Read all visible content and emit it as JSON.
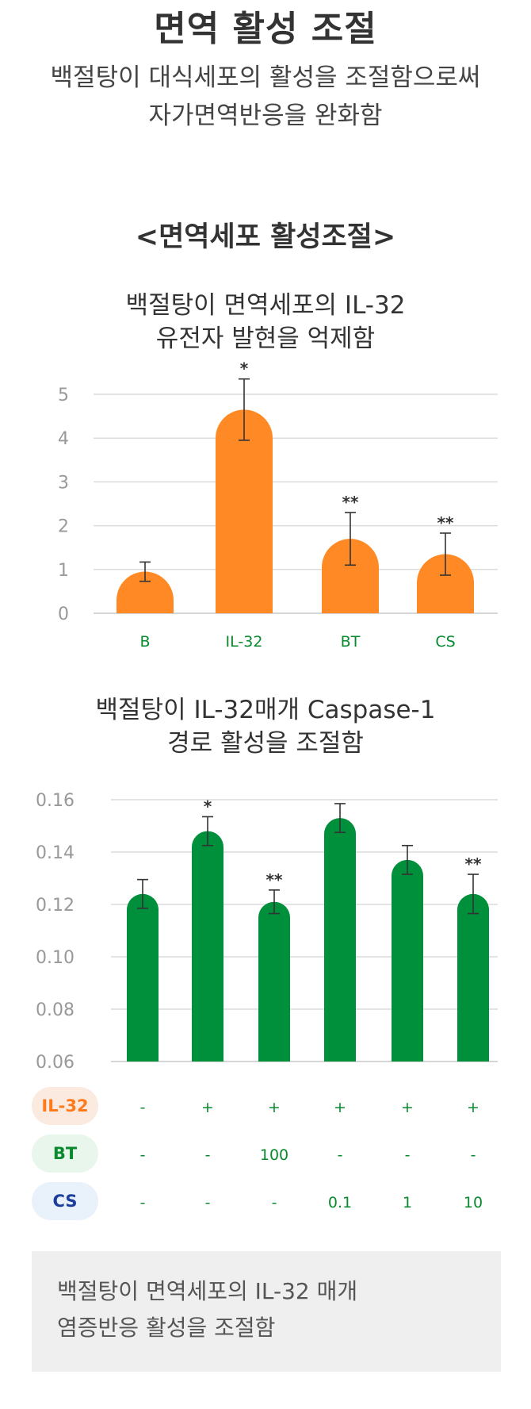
{
  "header": {
    "title": "면역 활성 조절",
    "subtitle_line1": "백절탕이 대식세포의 활성을 조절함으로써",
    "subtitle_line2": "자가면역반응을 완화함"
  },
  "section": {
    "title": "<면역세포 활성조절>"
  },
  "colors": {
    "orange": "#FF8A25",
    "green": "#008F3A",
    "label_green": "#0A8A2F"
  },
  "chart_data": [
    {
      "type": "bar",
      "title_line1": "백절탕이 면역세포의 IL-32",
      "title_line2": "유전자 발현을 억제함",
      "categories": [
        "B",
        "IL-32",
        "BT",
        "CS"
      ],
      "values": [
        0.95,
        4.65,
        1.7,
        1.35
      ],
      "error": [
        0.22,
        0.7,
        0.6,
        0.48
      ],
      "significance": [
        "",
        "*",
        "**",
        "**"
      ],
      "ylim": [
        0,
        5
      ],
      "yticks": [
        "0",
        "1",
        "2",
        "3",
        "4",
        "5"
      ],
      "xlabel": "",
      "ylabel": "",
      "grid": true
    },
    {
      "type": "bar",
      "title_line1": "백절탕이 IL-32매개 Caspase-1",
      "title_line2": "경로 활성을 조절함",
      "values": [
        0.124,
        0.148,
        0.121,
        0.153,
        0.137,
        0.124
      ],
      "error": [
        0.0055,
        0.0055,
        0.0045,
        0.0055,
        0.0055,
        0.0075
      ],
      "significance": [
        "",
        "*",
        "**",
        "",
        "",
        "**"
      ],
      "ylim": [
        0.06,
        0.16
      ],
      "yticks": [
        "0.06",
        "0.08",
        "0.10",
        "0.12",
        "0.14",
        "0.16"
      ],
      "xlabel": "",
      "ylabel": "",
      "grid": true,
      "conditions": [
        {
          "label": "IL-32",
          "values": [
            "-",
            "+",
            "+",
            "+",
            "+",
            "+"
          ]
        },
        {
          "label": "BT",
          "values": [
            "-",
            "-",
            "100",
            "-",
            "-",
            "-"
          ]
        },
        {
          "label": "CS",
          "values": [
            "-",
            "-",
            "-",
            "0.1",
            "1",
            "10"
          ]
        }
      ]
    }
  ],
  "note": {
    "line1": "백절탕이 면역세포의 IL-32 매개",
    "line2": "염증반응 활성을 조절함"
  }
}
